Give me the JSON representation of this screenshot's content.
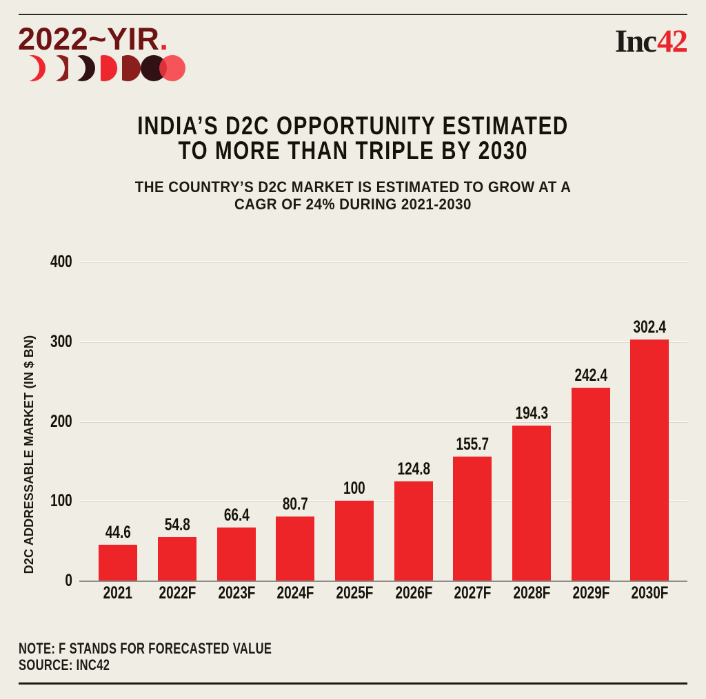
{
  "header": {
    "yir": {
      "text": "2022~YIR",
      "dot": "."
    },
    "brand": {
      "inc": "Inc",
      "num": "42"
    },
    "moon_phase_icons": [
      "crescent-thin-red",
      "crescent-maroon",
      "crescent-dark",
      "half-moon-red",
      "gibbous-maroon",
      "full-moon-dark",
      "full-moon-red"
    ]
  },
  "title": {
    "line1": "INDIA’S D2C OPPORTUNITY ESTIMATED",
    "line2": "TO MORE THAN TRIPLE BY 2030"
  },
  "subtitle": {
    "line1": "THE COUNTRY’S D2C MARKET IS ESTIMATED TO GROW AT A",
    "line2": "CAGR OF 24% DURING 2021-2030"
  },
  "chart_data": {
    "type": "bar",
    "categories": [
      "2021",
      "2022F",
      "2023F",
      "2024F",
      "2025F",
      "2026F",
      "2027F",
      "2028F",
      "2029F",
      "2030F"
    ],
    "values": [
      44.6,
      54.8,
      66.4,
      80.7,
      100,
      124.8,
      155.7,
      194.3,
      242.4,
      302.4
    ],
    "value_labels": [
      "44.6",
      "54.8",
      "66.4",
      "80.7",
      "100",
      "124.8",
      "155.7",
      "194.3",
      "242.4",
      "302.4"
    ],
    "title": "INDIA’S D2C OPPORTUNITY ESTIMATED TO MORE THAN TRIPLE BY 2030",
    "xlabel": "",
    "ylabel": "D2C ADDRESSABLE MARKET (IN $ BN)",
    "yticks": [
      0,
      100,
      200,
      300,
      400
    ],
    "ylim": [
      0,
      400
    ],
    "grid": true,
    "legend": "none",
    "bar_color": "#ED2428"
  },
  "footer": {
    "note": "NOTE: F STANDS FOR FORECASTED VALUE",
    "source": "SOURCE: INC42"
  },
  "colors": {
    "background": "#F0EDE4",
    "bar": "#ED2428",
    "accent_red": "#E8252A",
    "logo_maroon": "#6E1313",
    "ink": "#17140F",
    "gridline": "#FAF8F0",
    "axis_line": "#8E8E88",
    "moon_red": "#F0262E",
    "moon_bright_red": "#F73840",
    "moon_maroon": "#8A1F1D",
    "moon_dark": "#311114"
  }
}
